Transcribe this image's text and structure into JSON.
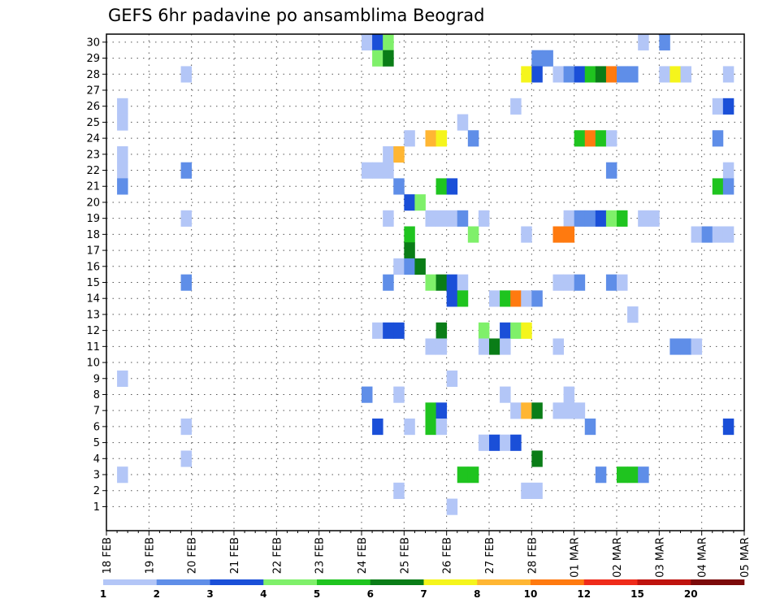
{
  "chart_data": {
    "type": "heatmap",
    "title": "GEFS 6hr padavine po ansamblima Beograd",
    "y_categories": [
      "1",
      "2",
      "3",
      "4",
      "5",
      "6",
      "7",
      "8",
      "9",
      "10",
      "11",
      "12",
      "13",
      "14",
      "15",
      "16",
      "17",
      "18",
      "19",
      "20",
      "21",
      "22",
      "23",
      "24",
      "25",
      "26",
      "27",
      "28",
      "29",
      "30"
    ],
    "x_tick_labels": [
      "18 FEB",
      "19 FEB",
      "20 FEB",
      "21 FEB",
      "22 FEB",
      "23 FEB",
      "24 FEB",
      "25 FEB",
      "26 FEB",
      "27 FEB",
      "28 FEB",
      "01 MAR",
      "02 MAR",
      "03 MAR",
      "04 MAR",
      "05 MAR"
    ],
    "steps_per_day": 4,
    "grid": true,
    "legend_position": "bottom",
    "levels": [
      "1",
      "2",
      "3",
      "4",
      "5",
      "6",
      "7",
      "8",
      "10",
      "12",
      "15",
      "20"
    ],
    "level_colors": [
      "#b3c6f7",
      "#5f8ee8",
      "#1a4fd8",
      "#7ff06a",
      "#1fc41f",
      "#0a7d17",
      "#f5f51c",
      "#ffb633",
      "#ff7a0f",
      "#ef2b1a",
      "#bf130e",
      "#7c0a0a"
    ],
    "cells": [
      {
        "m": 30,
        "t": 24,
        "c": 0
      },
      {
        "m": 30,
        "t": 25,
        "c": 2
      },
      {
        "m": 30,
        "t": 26,
        "c": 3
      },
      {
        "m": 30,
        "t": 50,
        "c": 0
      },
      {
        "m": 30,
        "t": 52,
        "c": 1
      },
      {
        "m": 29,
        "t": 25,
        "c": 3
      },
      {
        "m": 29,
        "t": 26,
        "c": 5
      },
      {
        "m": 29,
        "t": 40,
        "c": 1
      },
      {
        "m": 29,
        "t": 41,
        "c": 1
      },
      {
        "m": 28,
        "t": 7,
        "c": 0
      },
      {
        "m": 28,
        "t": 39,
        "c": 6
      },
      {
        "m": 28,
        "t": 40,
        "c": 2
      },
      {
        "m": 28,
        "t": 42,
        "c": 0
      },
      {
        "m": 28,
        "t": 43,
        "c": 1
      },
      {
        "m": 28,
        "t": 44,
        "c": 2
      },
      {
        "m": 28,
        "t": 45,
        "c": 4
      },
      {
        "m": 28,
        "t": 46,
        "c": 5
      },
      {
        "m": 28,
        "t": 47,
        "c": 8
      },
      {
        "m": 28,
        "t": 48,
        "c": 1
      },
      {
        "m": 28,
        "t": 49,
        "c": 1
      },
      {
        "m": 28,
        "t": 52,
        "c": 0
      },
      {
        "m": 28,
        "t": 53,
        "c": 6
      },
      {
        "m": 28,
        "t": 54,
        "c": 0
      },
      {
        "m": 28,
        "t": 58,
        "c": 0
      },
      {
        "m": 26,
        "t": 1,
        "c": 0
      },
      {
        "m": 26,
        "t": 38,
        "c": 0
      },
      {
        "m": 26,
        "t": 57,
        "c": 0
      },
      {
        "m": 26,
        "t": 58,
        "c": 2
      },
      {
        "m": 25,
        "t": 1,
        "c": 0
      },
      {
        "m": 25,
        "t": 33,
        "c": 0
      },
      {
        "m": 24,
        "t": 28,
        "c": 0
      },
      {
        "m": 24,
        "t": 30,
        "c": 7
      },
      {
        "m": 24,
        "t": 31,
        "c": 6
      },
      {
        "m": 24,
        "t": 34,
        "c": 1
      },
      {
        "m": 24,
        "t": 44,
        "c": 4
      },
      {
        "m": 24,
        "t": 45,
        "c": 8
      },
      {
        "m": 24,
        "t": 46,
        "c": 4
      },
      {
        "m": 24,
        "t": 47,
        "c": 0
      },
      {
        "m": 24,
        "t": 57,
        "c": 1
      },
      {
        "m": 23,
        "t": 1,
        "c": 0
      },
      {
        "m": 23,
        "t": 26,
        "c": 0
      },
      {
        "m": 23,
        "t": 27,
        "c": 7
      },
      {
        "m": 22,
        "t": 1,
        "c": 0
      },
      {
        "m": 22,
        "t": 7,
        "c": 1
      },
      {
        "m": 22,
        "t": 24,
        "c": 0
      },
      {
        "m": 22,
        "t": 25,
        "c": 0
      },
      {
        "m": 22,
        "t": 26,
        "c": 0
      },
      {
        "m": 22,
        "t": 47,
        "c": 1
      },
      {
        "m": 22,
        "t": 58,
        "c": 0
      },
      {
        "m": 21,
        "t": 1,
        "c": 1
      },
      {
        "m": 21,
        "t": 27,
        "c": 1
      },
      {
        "m": 21,
        "t": 31,
        "c": 4
      },
      {
        "m": 21,
        "t": 32,
        "c": 2
      },
      {
        "m": 21,
        "t": 57,
        "c": 4
      },
      {
        "m": 21,
        "t": 58,
        "c": 1
      },
      {
        "m": 20,
        "t": 28,
        "c": 2
      },
      {
        "m": 20,
        "t": 29,
        "c": 3
      },
      {
        "m": 19,
        "t": 7,
        "c": 0
      },
      {
        "m": 19,
        "t": 26,
        "c": 0
      },
      {
        "m": 19,
        "t": 30,
        "c": 0
      },
      {
        "m": 19,
        "t": 31,
        "c": 0
      },
      {
        "m": 19,
        "t": 32,
        "c": 0
      },
      {
        "m": 19,
        "t": 33,
        "c": 1
      },
      {
        "m": 19,
        "t": 35,
        "c": 0
      },
      {
        "m": 19,
        "t": 43,
        "c": 0
      },
      {
        "m": 19,
        "t": 44,
        "c": 1
      },
      {
        "m": 19,
        "t": 45,
        "c": 1
      },
      {
        "m": 19,
        "t": 46,
        "c": 2
      },
      {
        "m": 19,
        "t": 47,
        "c": 3
      },
      {
        "m": 19,
        "t": 48,
        "c": 4
      },
      {
        "m": 19,
        "t": 50,
        "c": 0
      },
      {
        "m": 19,
        "t": 51,
        "c": 0
      },
      {
        "m": 18,
        "t": 28,
        "c": 4
      },
      {
        "m": 18,
        "t": 34,
        "c": 3
      },
      {
        "m": 18,
        "t": 39,
        "c": 0
      },
      {
        "m": 18,
        "t": 42,
        "c": 8
      },
      {
        "m": 18,
        "t": 43,
        "c": 8
      },
      {
        "m": 18,
        "t": 55,
        "c": 0
      },
      {
        "m": 18,
        "t": 56,
        "c": 1
      },
      {
        "m": 18,
        "t": 57,
        "c": 0
      },
      {
        "m": 18,
        "t": 58,
        "c": 0
      },
      {
        "m": 17,
        "t": 28,
        "c": 5
      },
      {
        "m": 16,
        "t": 27,
        "c": 0
      },
      {
        "m": 16,
        "t": 28,
        "c": 1
      },
      {
        "m": 16,
        "t": 29,
        "c": 5
      },
      {
        "m": 15,
        "t": 7,
        "c": 1
      },
      {
        "m": 15,
        "t": 26,
        "c": 1
      },
      {
        "m": 15,
        "t": 30,
        "c": 3
      },
      {
        "m": 15,
        "t": 31,
        "c": 5
      },
      {
        "m": 15,
        "t": 32,
        "c": 2
      },
      {
        "m": 15,
        "t": 33,
        "c": 0
      },
      {
        "m": 15,
        "t": 42,
        "c": 0
      },
      {
        "m": 15,
        "t": 43,
        "c": 0
      },
      {
        "m": 15,
        "t": 44,
        "c": 1
      },
      {
        "m": 15,
        "t": 47,
        "c": 1
      },
      {
        "m": 15,
        "t": 48,
        "c": 0
      },
      {
        "m": 14,
        "t": 32,
        "c": 2
      },
      {
        "m": 14,
        "t": 33,
        "c": 4
      },
      {
        "m": 14,
        "t": 36,
        "c": 0
      },
      {
        "m": 14,
        "t": 37,
        "c": 4
      },
      {
        "m": 14,
        "t": 38,
        "c": 8
      },
      {
        "m": 14,
        "t": 39,
        "c": 0
      },
      {
        "m": 14,
        "t": 40,
        "c": 1
      },
      {
        "m": 13,
        "t": 49,
        "c": 0
      },
      {
        "m": 12,
        "t": 25,
        "c": 0
      },
      {
        "m": 12,
        "t": 26,
        "c": 2
      },
      {
        "m": 12,
        "t": 27,
        "c": 2
      },
      {
        "m": 12,
        "t": 31,
        "c": 5
      },
      {
        "m": 12,
        "t": 35,
        "c": 3
      },
      {
        "m": 12,
        "t": 37,
        "c": 2
      },
      {
        "m": 12,
        "t": 38,
        "c": 3
      },
      {
        "m": 12,
        "t": 39,
        "c": 6
      },
      {
        "m": 11,
        "t": 30,
        "c": 0
      },
      {
        "m": 11,
        "t": 31,
        "c": 0
      },
      {
        "m": 11,
        "t": 35,
        "c": 0
      },
      {
        "m": 11,
        "t": 36,
        "c": 5
      },
      {
        "m": 11,
        "t": 37,
        "c": 0
      },
      {
        "m": 11,
        "t": 42,
        "c": 0
      },
      {
        "m": 11,
        "t": 53,
        "c": 1
      },
      {
        "m": 11,
        "t": 54,
        "c": 1
      },
      {
        "m": 11,
        "t": 55,
        "c": 0
      },
      {
        "m": 9,
        "t": 1,
        "c": 0
      },
      {
        "m": 9,
        "t": 32,
        "c": 0
      },
      {
        "m": 8,
        "t": 24,
        "c": 1
      },
      {
        "m": 8,
        "t": 27,
        "c": 0
      },
      {
        "m": 8,
        "t": 37,
        "c": 0
      },
      {
        "m": 8,
        "t": 43,
        "c": 0
      },
      {
        "m": 7,
        "t": 30,
        "c": 4
      },
      {
        "m": 7,
        "t": 31,
        "c": 2
      },
      {
        "m": 7,
        "t": 38,
        "c": 0
      },
      {
        "m": 7,
        "t": 39,
        "c": 7
      },
      {
        "m": 7,
        "t": 40,
        "c": 5
      },
      {
        "m": 7,
        "t": 42,
        "c": 0
      },
      {
        "m": 7,
        "t": 43,
        "c": 0
      },
      {
        "m": 7,
        "t": 44,
        "c": 0
      },
      {
        "m": 6,
        "t": 7,
        "c": 0
      },
      {
        "m": 6,
        "t": 25,
        "c": 2
      },
      {
        "m": 6,
        "t": 28,
        "c": 0
      },
      {
        "m": 6,
        "t": 30,
        "c": 4
      },
      {
        "m": 6,
        "t": 31,
        "c": 0
      },
      {
        "m": 6,
        "t": 45,
        "c": 1
      },
      {
        "m": 6,
        "t": 58,
        "c": 2
      },
      {
        "m": 5,
        "t": 35,
        "c": 0
      },
      {
        "m": 5,
        "t": 36,
        "c": 2
      },
      {
        "m": 5,
        "t": 37,
        "c": 0
      },
      {
        "m": 5,
        "t": 38,
        "c": 2
      },
      {
        "m": 4,
        "t": 7,
        "c": 0
      },
      {
        "m": 4,
        "t": 40,
        "c": 5
      },
      {
        "m": 3,
        "t": 1,
        "c": 0
      },
      {
        "m": 3,
        "t": 33,
        "c": 4
      },
      {
        "m": 3,
        "t": 34,
        "c": 4
      },
      {
        "m": 3,
        "t": 46,
        "c": 1
      },
      {
        "m": 3,
        "t": 48,
        "c": 4
      },
      {
        "m": 3,
        "t": 49,
        "c": 4
      },
      {
        "m": 3,
        "t": 50,
        "c": 1
      },
      {
        "m": 2,
        "t": 27,
        "c": 0
      },
      {
        "m": 2,
        "t": 39,
        "c": 0
      },
      {
        "m": 2,
        "t": 40,
        "c": 0
      },
      {
        "m": 1,
        "t": 32,
        "c": 0
      }
    ]
  }
}
